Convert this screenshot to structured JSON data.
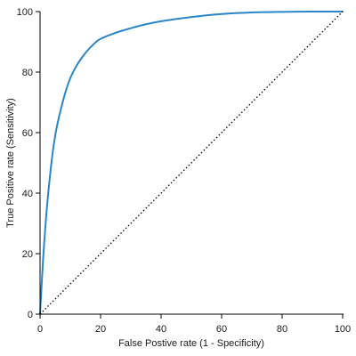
{
  "chart_data": {
    "type": "line",
    "title": "",
    "xlabel": "False Postive rate (1 - Specificity)",
    "ylabel": "True Positive rate (Sensitivity)",
    "xlim": [
      0,
      100
    ],
    "ylim": [
      0,
      100
    ],
    "x_ticks": [
      "0",
      "20",
      "40",
      "60",
      "80",
      "100"
    ],
    "y_ticks": [
      "0",
      "20",
      "40",
      "60",
      "80",
      "100"
    ],
    "grid": false,
    "legend": "none",
    "series": [
      {
        "style": "solid",
        "color": "#2a86c8",
        "points": [
          [
            0,
            0
          ],
          [
            1,
            18
          ],
          [
            2,
            32
          ],
          [
            3,
            43
          ],
          [
            4,
            52
          ],
          [
            5,
            59
          ],
          [
            6,
            64
          ],
          [
            8,
            72
          ],
          [
            10,
            78
          ],
          [
            12,
            82
          ],
          [
            14,
            85
          ],
          [
            16,
            87.5
          ],
          [
            18,
            89.5
          ],
          [
            20,
            91
          ],
          [
            25,
            93
          ],
          [
            30,
            94.5
          ],
          [
            35,
            95.8
          ],
          [
            40,
            96.8
          ],
          [
            50,
            98.2
          ],
          [
            60,
            99.2
          ],
          [
            70,
            99.7
          ],
          [
            80,
            99.9
          ],
          [
            90,
            100
          ],
          [
            100,
            100
          ]
        ]
      },
      {
        "style": "dotted",
        "color": "#000000",
        "points": [
          [
            0,
            0
          ],
          [
            100,
            100
          ]
        ]
      }
    ]
  }
}
